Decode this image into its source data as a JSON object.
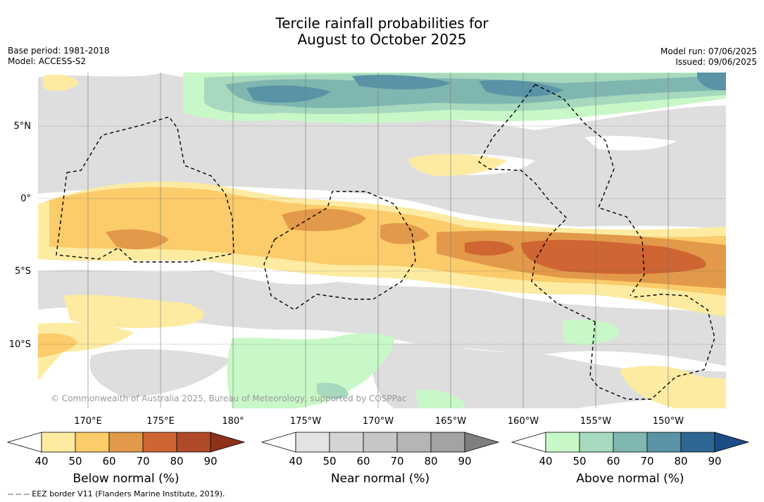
{
  "title": {
    "line1": "Tercile rainfall probabilities for",
    "line2": "August to October 2025"
  },
  "meta": {
    "base_period": "Base period: 1981-2018",
    "model": "Model: ACCESS-S2",
    "model_run": "Model run: 07/06/2025",
    "issued": "Issued: 09/06/2025"
  },
  "map": {
    "lat_labels": [
      "5°N",
      "0°",
      "5°S",
      "10°S"
    ],
    "lon_labels": [
      "170°E",
      "175°E",
      "180°",
      "175°W",
      "170°W",
      "165°W",
      "160°W",
      "155°W",
      "150°W"
    ],
    "copyright": "© Commonwealth of Australia 2025, Bureau of Meteorology, supported by COSPPac",
    "colors": {
      "background": "#ffffff",
      "near_normal_fill": "#dedede",
      "eez_border": "#000000"
    }
  },
  "colorbars": [
    {
      "label": "Below normal (%)",
      "ticks": [
        "40",
        "50",
        "60",
        "70",
        "80",
        "90"
      ],
      "colors": [
        "#fdeba2",
        "#fccb6a",
        "#e3994a",
        "#cf6533",
        "#b14a28",
        "#8f321c"
      ]
    },
    {
      "label": "Near normal (%)",
      "ticks": [
        "40",
        "50",
        "60",
        "70",
        "80",
        "90"
      ],
      "colors": [
        "#e3e3e3",
        "#d4d4d4",
        "#c6c6c6",
        "#b5b5b5",
        "#a3a3a3",
        "#7f7f7f"
      ]
    },
    {
      "label": "Above normal (%)",
      "ticks": [
        "40",
        "50",
        "60",
        "70",
        "80",
        "90"
      ],
      "colors": [
        "#c9f8c8",
        "#a6d9bd",
        "#80b6b0",
        "#5a93a5",
        "#2e6593",
        "#1c4d86"
      ]
    }
  ],
  "eez_note": "--  --  -- EEZ border V11 (Flanders Marine Institute, 2019)."
}
